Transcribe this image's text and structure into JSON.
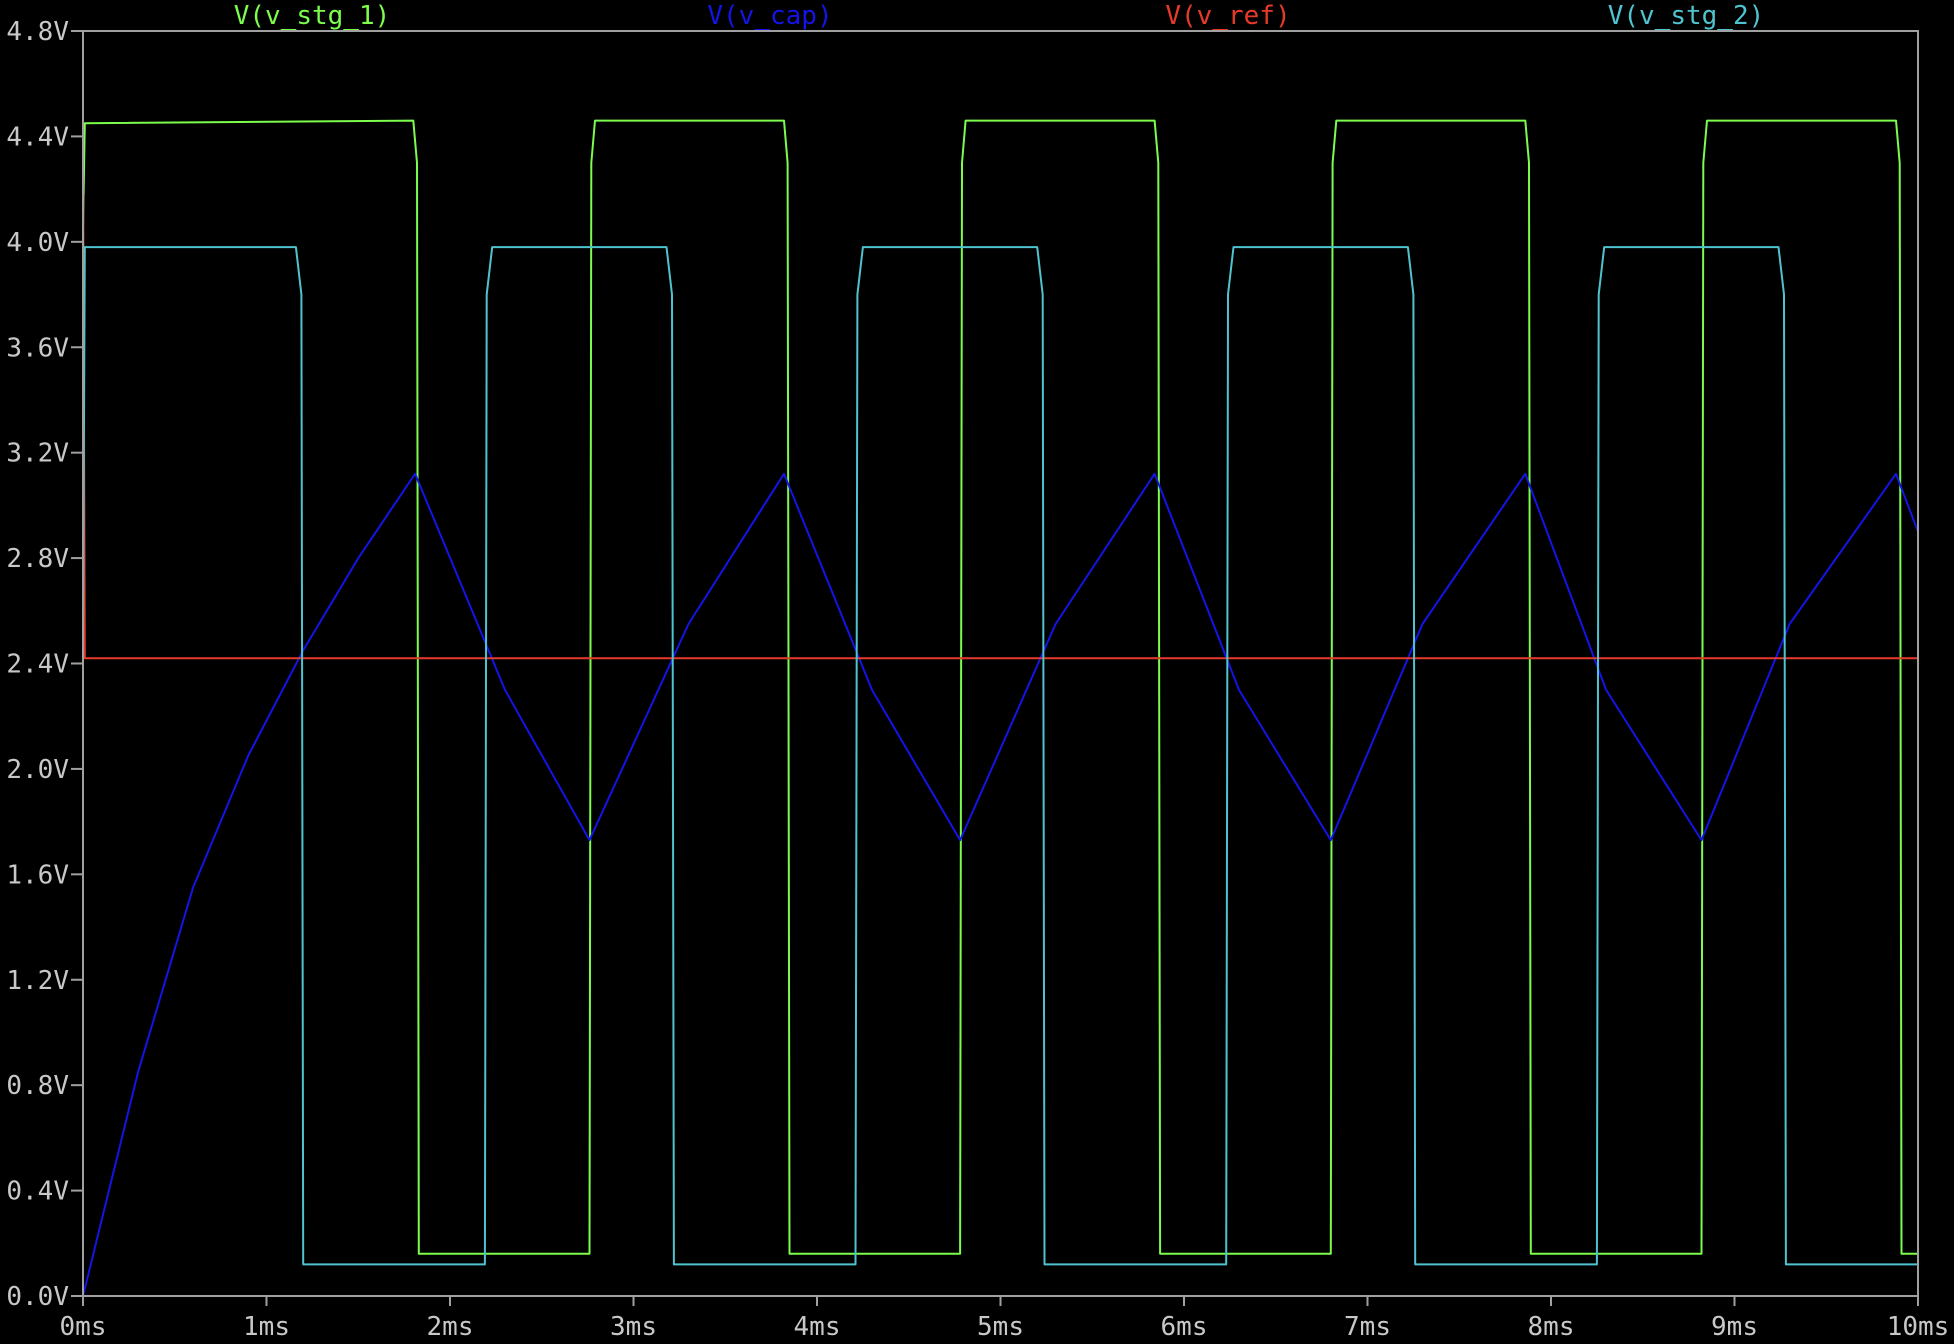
{
  "chart_data": {
    "type": "line",
    "xlim": [
      0,
      10
    ],
    "ylim": [
      0,
      4.8
    ],
    "x_ticks": [
      "0ms",
      "1ms",
      "2ms",
      "3ms",
      "4ms",
      "5ms",
      "6ms",
      "7ms",
      "8ms",
      "9ms",
      "10ms"
    ],
    "y_ticks": [
      "0.0V",
      "0.4V",
      "0.8V",
      "1.2V",
      "1.6V",
      "2.0V",
      "2.4V",
      "2.8V",
      "3.2V",
      "3.6V",
      "4.0V",
      "4.4V",
      "4.8V"
    ],
    "grid": false,
    "legend_position": "top",
    "colors": {
      "background": "#000000",
      "axis": "#a0a0a0",
      "tick_text": "#c8c8c8"
    },
    "series": [
      {
        "name": "V(v_stg_1)",
        "color": "#7CFC4C",
        "x": [
          0,
          0.01,
          1.8,
          1.82,
          1.83,
          2.76,
          2.77,
          2.79,
          3.82,
          3.84,
          3.85,
          4.78,
          4.79,
          4.81,
          5.84,
          5.86,
          5.87,
          6.8,
          6.81,
          6.83,
          7.86,
          7.88,
          7.89,
          8.82,
          8.83,
          8.85,
          9.88,
          9.9,
          9.91,
          10
        ],
        "y": [
          4.05,
          4.45,
          4.46,
          4.3,
          0.16,
          0.16,
          4.3,
          4.46,
          4.46,
          4.3,
          0.16,
          0.16,
          4.3,
          4.46,
          4.46,
          4.3,
          0.16,
          0.16,
          4.3,
          4.46,
          4.46,
          4.3,
          0.16,
          0.16,
          4.3,
          4.46,
          4.46,
          4.3,
          0.16,
          0.16
        ]
      },
      {
        "name": "V(v_cap)",
        "color": "#1414E6",
        "x": [
          0,
          0.3,
          0.6,
          0.9,
          1.2,
          1.5,
          1.81,
          2.3,
          2.76,
          3.3,
          3.82,
          4.3,
          4.78,
          5.3,
          5.84,
          6.3,
          6.8,
          7.3,
          7.86,
          8.3,
          8.82,
          9.3,
          9.88,
          10
        ],
        "y": [
          0.0,
          0.85,
          1.55,
          2.05,
          2.45,
          2.8,
          3.12,
          2.3,
          1.73,
          2.55,
          3.12,
          2.3,
          1.73,
          2.55,
          3.12,
          2.3,
          1.73,
          2.55,
          3.12,
          2.3,
          1.73,
          2.55,
          3.12,
          2.9
        ]
      },
      {
        "name": "V(v_ref)",
        "color": "#E83A2A",
        "x": [
          0,
          0.001,
          0.01,
          10
        ],
        "y": [
          3.97,
          4.18,
          2.42,
          2.42
        ]
      },
      {
        "name": "V(v_stg_2)",
        "color": "#4FC3CF",
        "x": [
          0,
          0.01,
          1.16,
          1.19,
          1.2,
          2.19,
          2.2,
          2.23,
          3.18,
          3.21,
          3.22,
          4.21,
          4.22,
          4.25,
          5.2,
          5.23,
          5.24,
          6.23,
          6.24,
          6.27,
          7.22,
          7.25,
          7.26,
          8.25,
          8.26,
          8.29,
          9.24,
          9.27,
          9.28,
          10
        ],
        "y": [
          2.5,
          3.98,
          3.98,
          3.8,
          0.12,
          0.12,
          3.8,
          3.98,
          3.98,
          3.8,
          0.12,
          0.12,
          3.8,
          3.98,
          3.98,
          3.8,
          0.12,
          0.12,
          3.8,
          3.98,
          3.98,
          3.8,
          0.12,
          0.12,
          3.8,
          3.98,
          3.98,
          3.8,
          0.12,
          0.12
        ]
      }
    ]
  }
}
